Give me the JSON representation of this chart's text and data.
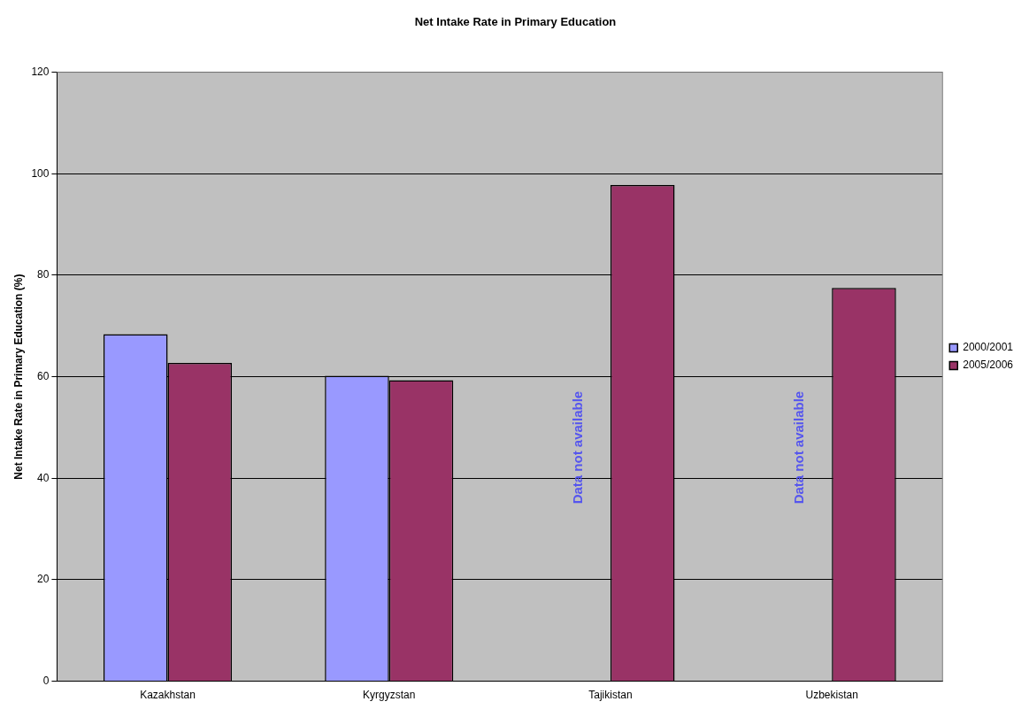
{
  "chart_data": {
    "type": "bar",
    "title": "Net Intake Rate in Primary Education",
    "ylabel": "Net Intake Rate in Primary Education (%)",
    "categories": [
      "Kazakhstan",
      "Kyrgyzstan",
      "Tajikistan",
      "Uzbekistan"
    ],
    "series": [
      {
        "name": "2000/2001",
        "color": "#9999ff",
        "values": [
          68.4,
          60.2,
          null,
          null
        ]
      },
      {
        "name": "2005/2006",
        "color": "#993366",
        "values": [
          62.7,
          59.3,
          97.8,
          77.5
        ]
      }
    ],
    "annotations": [
      "Data not available",
      "Data not available"
    ],
    "ylim": [
      0,
      120
    ],
    "yticks": [
      0,
      20,
      40,
      60,
      80,
      100,
      120
    ],
    "grid": "y",
    "legend": "right"
  }
}
